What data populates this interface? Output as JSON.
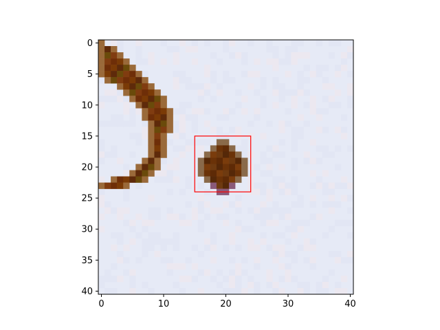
{
  "colors": {
    "figure_background": "#ffffff",
    "image_background": "#e6eaf6",
    "arc": "#6e2e08",
    "blob": "#6a3208",
    "axis": "#000000",
    "rectangle": "#ff0000"
  },
  "chart_data": {
    "type": "heatmap",
    "title": "",
    "xlabel": "",
    "ylabel": "",
    "image_size": [
      41,
      41
    ],
    "xlim": [
      -0.5,
      40.5
    ],
    "ylim": [
      40.5,
      -0.5
    ],
    "y_axis_inverted": true,
    "grid": false,
    "x_ticks": [
      0,
      10,
      20,
      30,
      40
    ],
    "y_ticks": [
      0,
      5,
      10,
      15,
      20,
      25,
      30,
      35,
      40
    ],
    "x_tick_labels": [
      "0",
      "10",
      "20",
      "30",
      "40"
    ],
    "y_tick_labels": [
      "0",
      "5",
      "10",
      "15",
      "20",
      "25",
      "30",
      "35",
      "40"
    ],
    "rectangle": {
      "x0": 15,
      "y0": 15,
      "x1": 24,
      "y1": 24,
      "color": "#ff0000"
    },
    "features": [
      {
        "name": "dark curved arc",
        "x_range": [
          0,
          11
        ],
        "y_range": [
          0,
          23
        ]
      },
      {
        "name": "dark blob",
        "center": [
          20,
          20
        ],
        "x_range": [
          16,
          23
        ],
        "y_range": [
          16,
          24
        ]
      }
    ]
  }
}
